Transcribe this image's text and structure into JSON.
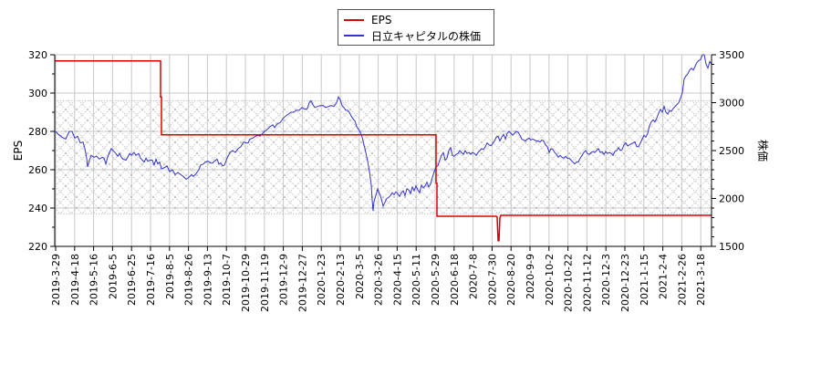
{
  "chart_data": {
    "type": "line",
    "title": "",
    "xlabel": "",
    "ylabel": "EPS",
    "ylabel_right": "株価",
    "ylim": [
      220,
      320
    ],
    "ylim_right": [
      1500,
      3500
    ],
    "yticks": [
      220,
      240,
      260,
      280,
      300,
      320
    ],
    "yticks_right": [
      1500,
      2000,
      2500,
      3000,
      3500
    ],
    "grid": true,
    "legend_position": "top-center",
    "shaded_band": {
      "eps_range": [
        237,
        296
      ],
      "pattern": "crosshatch",
      "color": "#c8c8c8"
    },
    "categories": [
      "2019-3-29",
      "2019-4-18",
      "2019-5-16",
      "2019-6-5",
      "2019-6-25",
      "2019-7-16",
      "2019-8-5",
      "2019-8-26",
      "2019-9-13",
      "2019-10-7",
      "2019-10-29",
      "2019-11-19",
      "2019-12-9",
      "2019-12-27",
      "2020-1-23",
      "2020-2-13",
      "2020-3-5",
      "2020-3-26",
      "2020-4-15",
      "2020-5-11",
      "2020-5-29",
      "2020-6-18",
      "2020-7-8",
      "2020-7-30",
      "2020-8-20",
      "2020-9-9",
      "2020-10-2",
      "2020-10-22",
      "2020-11-12",
      "2020-12-3",
      "2020-12-23",
      "2021-1-15",
      "2021-2-4",
      "2021-2-26",
      "2021-3-18"
    ],
    "series": [
      {
        "name": "EPS",
        "color": "#dd0000",
        "axis": "left",
        "values": [
          316.8,
          316.8,
          316.8,
          316.8,
          316.8,
          316.8,
          278.2,
          278.2,
          278.2,
          278.2,
          278.2,
          278.2,
          278.2,
          278.2,
          278.2,
          278.2,
          278.2,
          278.2,
          278.2,
          278.2,
          235.7,
          235.7,
          235.7,
          235.7,
          236.1,
          236.1,
          236.1,
          236.1,
          236.1,
          236.1,
          236.1,
          236.1,
          236.1,
          236.1,
          236.1
        ],
        "annotations": [
          {
            "x": "2020-8-5",
            "note": "brief dip to ~223"
          }
        ]
      },
      {
        "name": "日立キャピタルの株価",
        "color": "#3333cc",
        "axis": "right",
        "values": [
          2680,
          2730,
          2520,
          2550,
          2600,
          2530,
          2440,
          2360,
          2450,
          2440,
          2600,
          2680,
          2780,
          2900,
          2970,
          3080,
          2850,
          1870,
          2100,
          2150,
          2450,
          2640,
          2620,
          2680,
          2770,
          2700,
          2620,
          2540,
          2580,
          2610,
          2680,
          2780,
          2990,
          3000,
          3450
        ]
      }
    ]
  },
  "legend": {
    "items": [
      {
        "label": "EPS",
        "color": "#dd0000"
      },
      {
        "label": "日立キャピタルの株価",
        "color": "#3333cc"
      }
    ]
  },
  "axes": {
    "left_title": "EPS",
    "right_title": "株価"
  },
  "price_trace": [
    [
      61,
      2700
    ],
    [
      64,
      2670
    ],
    [
      68,
      2640
    ],
    [
      72,
      2620
    ],
    [
      76,
      2700
    ],
    [
      79,
      2700
    ],
    [
      82,
      2630
    ],
    [
      85,
      2650
    ],
    [
      88,
      2580
    ],
    [
      91,
      2590
    ],
    [
      93,
      2520
    ],
    [
      95,
      2420
    ],
    [
      96,
      2330
    ],
    [
      98,
      2400
    ],
    [
      100,
      2450
    ],
    [
      103,
      2430
    ],
    [
      106,
      2440
    ],
    [
      109,
      2410
    ],
    [
      112,
      2430
    ],
    [
      114,
      2420
    ],
    [
      116,
      2360
    ],
    [
      118,
      2430
    ],
    [
      120,
      2480
    ],
    [
      122,
      2520
    ],
    [
      124,
      2500
    ],
    [
      127,
      2470
    ],
    [
      129,
      2440
    ],
    [
      131,
      2470
    ],
    [
      133,
      2430
    ],
    [
      135,
      2410
    ],
    [
      138,
      2400
    ],
    [
      140,
      2430
    ],
    [
      142,
      2470
    ],
    [
      144,
      2450
    ],
    [
      147,
      2480
    ],
    [
      149,
      2450
    ],
    [
      152,
      2470
    ],
    [
      154,
      2420
    ],
    [
      156,
      2400
    ],
    [
      158,
      2380
    ],
    [
      160,
      2420
    ],
    [
      162,
      2390
    ],
    [
      165,
      2400
    ],
    [
      167,
      2400
    ],
    [
      169,
      2350
    ],
    [
      171,
      2410
    ],
    [
      173,
      2360
    ],
    [
      175,
      2380
    ],
    [
      177,
      2310
    ],
    [
      180,
      2320
    ],
    [
      183,
      2340
    ],
    [
      186,
      2280
    ],
    [
      189,
      2300
    ],
    [
      192,
      2250
    ],
    [
      195,
      2270
    ],
    [
      198,
      2250
    ],
    [
      201,
      2230
    ],
    [
      204,
      2200
    ],
    [
      207,
      2220
    ],
    [
      210,
      2250
    ],
    [
      212,
      2230
    ],
    [
      215,
      2260
    ],
    [
      218,
      2300
    ],
    [
      220,
      2350
    ],
    [
      223,
      2360
    ],
    [
      225,
      2380
    ],
    [
      228,
      2390
    ],
    [
      231,
      2370
    ],
    [
      233,
      2370
    ],
    [
      235,
      2390
    ],
    [
      238,
      2410
    ],
    [
      240,
      2360
    ],
    [
      242,
      2370
    ],
    [
      244,
      2340
    ],
    [
      246,
      2350
    ],
    [
      249,
      2420
    ],
    [
      252,
      2480
    ],
    [
      255,
      2500
    ],
    [
      258,
      2480
    ],
    [
      261,
      2520
    ],
    [
      264,
      2540
    ],
    [
      267,
      2590
    ],
    [
      270,
      2580
    ],
    [
      272,
      2580
    ],
    [
      274,
      2620
    ],
    [
      277,
      2630
    ],
    [
      280,
      2650
    ],
    [
      283,
      2660
    ],
    [
      285,
      2650
    ],
    [
      288,
      2680
    ],
    [
      290,
      2700
    ],
    [
      293,
      2720
    ],
    [
      296,
      2750
    ],
    [
      299,
      2770
    ],
    [
      301,
      2740
    ],
    [
      304,
      2780
    ],
    [
      307,
      2790
    ],
    [
      310,
      2830
    ],
    [
      313,
      2860
    ],
    [
      316,
      2880
    ],
    [
      319,
      2900
    ],
    [
      322,
      2900
    ],
    [
      325,
      2920
    ],
    [
      328,
      2920
    ],
    [
      331,
      2950
    ],
    [
      334,
      2930
    ],
    [
      337,
      2940
    ],
    [
      339,
      3000
    ],
    [
      341,
      3020
    ],
    [
      343,
      2980
    ],
    [
      345,
      2950
    ],
    [
      348,
      2960
    ],
    [
      351,
      2970
    ],
    [
      354,
      2970
    ],
    [
      357,
      2950
    ],
    [
      360,
      2960
    ],
    [
      363,
      2970
    ],
    [
      366,
      2960
    ],
    [
      369,
      3000
    ],
    [
      371,
      3060
    ],
    [
      373,
      3030
    ],
    [
      375,
      2970
    ],
    [
      377,
      2950
    ],
    [
      379,
      2920
    ],
    [
      381,
      2920
    ],
    [
      383,
      2900
    ],
    [
      385,
      2860
    ],
    [
      387,
      2830
    ],
    [
      389,
      2810
    ],
    [
      391,
      2750
    ],
    [
      393,
      2720
    ],
    [
      395,
      2690
    ],
    [
      397,
      2640
    ],
    [
      399,
      2560
    ],
    [
      401,
      2480
    ],
    [
      403,
      2390
    ],
    [
      405,
      2280
    ],
    [
      407,
      2140
    ],
    [
      408,
      1980
    ],
    [
      409,
      1870
    ],
    [
      410,
      1970
    ],
    [
      412,
      2030
    ],
    [
      414,
      2100
    ],
    [
      416,
      2050
    ],
    [
      418,
      2000
    ],
    [
      420,
      1920
    ],
    [
      422,
      1960
    ],
    [
      424,
      2000
    ],
    [
      426,
      2010
    ],
    [
      428,
      2030
    ],
    [
      430,
      2060
    ],
    [
      432,
      2040
    ],
    [
      434,
      2070
    ],
    [
      436,
      2050
    ],
    [
      438,
      2020
    ],
    [
      440,
      2060
    ],
    [
      442,
      2080
    ],
    [
      444,
      2030
    ],
    [
      446,
      2100
    ],
    [
      448,
      2090
    ],
    [
      450,
      2050
    ],
    [
      452,
      2120
    ],
    [
      454,
      2080
    ],
    [
      456,
      2130
    ],
    [
      458,
      2090
    ],
    [
      460,
      2060
    ],
    [
      462,
      2140
    ],
    [
      464,
      2110
    ],
    [
      466,
      2130
    ],
    [
      468,
      2170
    ],
    [
      470,
      2120
    ],
    [
      472,
      2150
    ],
    [
      474,
      2220
    ],
    [
      476,
      2280
    ],
    [
      478,
      2330
    ],
    [
      480,
      2340
    ],
    [
      482,
      2400
    ],
    [
      484,
      2450
    ],
    [
      486,
      2480
    ],
    [
      488,
      2400
    ],
    [
      490,
      2420
    ],
    [
      492,
      2500
    ],
    [
      494,
      2530
    ],
    [
      496,
      2450
    ],
    [
      498,
      2440
    ],
    [
      500,
      2460
    ],
    [
      502,
      2470
    ],
    [
      504,
      2500
    ],
    [
      506,
      2480
    ],
    [
      508,
      2460
    ],
    [
      510,
      2500
    ],
    [
      512,
      2470
    ],
    [
      514,
      2480
    ],
    [
      516,
      2460
    ],
    [
      518,
      2480
    ],
    [
      520,
      2470
    ],
    [
      522,
      2450
    ],
    [
      524,
      2480
    ],
    [
      526,
      2500
    ],
    [
      528,
      2520
    ],
    [
      530,
      2510
    ],
    [
      532,
      2540
    ],
    [
      534,
      2580
    ],
    [
      536,
      2560
    ],
    [
      538,
      2550
    ],
    [
      540,
      2570
    ],
    [
      542,
      2600
    ],
    [
      544,
      2640
    ],
    [
      546,
      2650
    ],
    [
      548,
      2600
    ],
    [
      550,
      2640
    ],
    [
      552,
      2670
    ],
    [
      554,
      2620
    ],
    [
      556,
      2680
    ],
    [
      558,
      2700
    ],
    [
      560,
      2680
    ],
    [
      562,
      2660
    ],
    [
      564,
      2680
    ],
    [
      566,
      2700
    ],
    [
      568,
      2690
    ],
    [
      570,
      2660
    ],
    [
      572,
      2620
    ],
    [
      574,
      2610
    ],
    [
      576,
      2600
    ],
    [
      578,
      2620
    ],
    [
      580,
      2630
    ],
    [
      582,
      2610
    ],
    [
      584,
      2620
    ],
    [
      586,
      2610
    ],
    [
      588,
      2600
    ],
    [
      590,
      2600
    ],
    [
      592,
      2590
    ],
    [
      594,
      2610
    ],
    [
      596,
      2600
    ],
    [
      598,
      2560
    ],
    [
      600,
      2540
    ],
    [
      602,
      2480
    ],
    [
      604,
      2520
    ],
    [
      606,
      2510
    ],
    [
      608,
      2480
    ],
    [
      610,
      2460
    ],
    [
      612,
      2430
    ],
    [
      614,
      2450
    ],
    [
      616,
      2430
    ],
    [
      618,
      2420
    ],
    [
      620,
      2440
    ],
    [
      622,
      2420
    ],
    [
      624,
      2420
    ],
    [
      626,
      2400
    ],
    [
      628,
      2380
    ],
    [
      630,
      2360
    ],
    [
      632,
      2380
    ],
    [
      634,
      2380
    ],
    [
      636,
      2420
    ],
    [
      638,
      2450
    ],
    [
      640,
      2480
    ],
    [
      642,
      2500
    ],
    [
      644,
      2470
    ],
    [
      646,
      2460
    ],
    [
      648,
      2480
    ],
    [
      650,
      2490
    ],
    [
      652,
      2480
    ],
    [
      654,
      2500
    ],
    [
      656,
      2520
    ],
    [
      658,
      2480
    ],
    [
      660,
      2490
    ],
    [
      662,
      2460
    ],
    [
      664,
      2490
    ],
    [
      666,
      2470
    ],
    [
      668,
      2480
    ],
    [
      670,
      2470
    ],
    [
      672,
      2450
    ],
    [
      674,
      2490
    ],
    [
      676,
      2500
    ],
    [
      678,
      2530
    ],
    [
      680,
      2500
    ],
    [
      682,
      2510
    ],
    [
      684,
      2560
    ],
    [
      686,
      2580
    ],
    [
      688,
      2550
    ],
    [
      690,
      2560
    ],
    [
      692,
      2570
    ],
    [
      694,
      2580
    ],
    [
      696,
      2590
    ],
    [
      698,
      2540
    ],
    [
      700,
      2540
    ],
    [
      702,
      2580
    ],
    [
      704,
      2620
    ],
    [
      706,
      2660
    ],
    [
      708,
      2640
    ],
    [
      710,
      2680
    ],
    [
      712,
      2760
    ],
    [
      714,
      2800
    ],
    [
      716,
      2820
    ],
    [
      718,
      2800
    ],
    [
      720,
      2840
    ],
    [
      722,
      2890
    ],
    [
      724,
      2930
    ],
    [
      726,
      2900
    ],
    [
      728,
      2960
    ],
    [
      730,
      2900
    ],
    [
      732,
      2880
    ],
    [
      734,
      2920
    ],
    [
      736,
      2910
    ],
    [
      738,
      2940
    ],
    [
      740,
      2960
    ],
    [
      742,
      2980
    ],
    [
      744,
      3000
    ],
    [
      746,
      3050
    ],
    [
      748,
      3100
    ],
    [
      750,
      3250
    ],
    [
      752,
      3280
    ],
    [
      754,
      3300
    ],
    [
      756,
      3340
    ],
    [
      758,
      3360
    ],
    [
      760,
      3340
    ],
    [
      762,
      3380
    ],
    [
      764,
      3420
    ],
    [
      766,
      3440
    ],
    [
      768,
      3450
    ],
    [
      770,
      3500
    ],
    [
      772,
      3500
    ],
    [
      774,
      3400
    ],
    [
      776,
      3360
    ],
    [
      778,
      3430
    ],
    [
      780,
      3400
    ]
  ],
  "eps_trace": [
    [
      60,
      316.8
    ],
    [
      176,
      316.8
    ],
    [
      176,
      298
    ],
    [
      177,
      298
    ],
    [
      177,
      278.2
    ],
    [
      478,
      278.2
    ],
    [
      478,
      253
    ],
    [
      479,
      253
    ],
    [
      479,
      235.7
    ],
    [
      544,
      235.7
    ],
    [
      545,
      235.4
    ],
    [
      546,
      223
    ],
    [
      547,
      223
    ],
    [
      548,
      235
    ],
    [
      549,
      236.2
    ],
    [
      780,
      236.2
    ]
  ]
}
